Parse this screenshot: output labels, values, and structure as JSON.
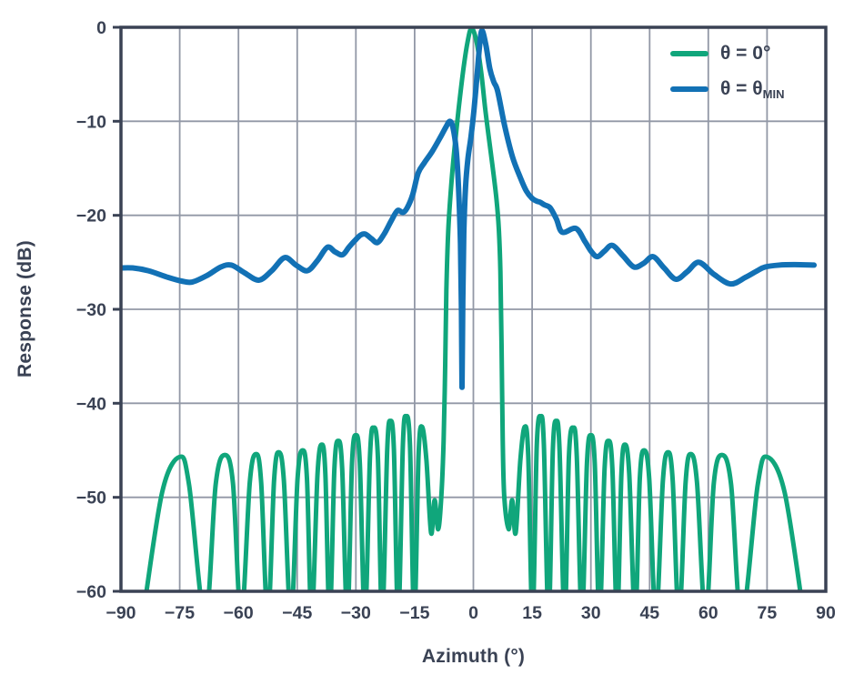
{
  "chart_data": {
    "type": "line",
    "title": "",
    "xlabel": "Azimuth (°)",
    "ylabel": "Response (dB)",
    "xlim": [
      -90,
      90
    ],
    "ylim": [
      -60,
      0
    ],
    "grid": true,
    "legend_position": "top-right",
    "xticks": {
      "values": [
        -90,
        -75,
        -60,
        -45,
        -30,
        -15,
        0,
        15,
        30,
        45,
        60,
        75,
        90
      ],
      "labels": [
        "−90",
        "−75",
        "−60",
        "−45",
        "−30",
        "−15",
        "0",
        "15",
        "30",
        "45",
        "60",
        "75",
        "90"
      ]
    },
    "yticks": {
      "values": [
        0,
        -10,
        -20,
        -30,
        -40,
        -50,
        -60
      ],
      "labels": [
        "0",
        "−10",
        "−20",
        "−30",
        "−40",
        "−50",
        "−60"
      ]
    },
    "colors": {
      "series_green": "#10a67b",
      "series_blue": "#1271b5",
      "grid": "#9298a6",
      "spine": "#3a4254",
      "text": "#3a4254"
    },
    "series": [
      {
        "name": "θ = 0°",
        "color": "#10a67b",
        "points": [
          [
            -84.5,
            -63
          ],
          [
            -79.5,
            -49.5
          ],
          [
            -75,
            -45.7
          ],
          [
            -72.6,
            -48.7
          ],
          [
            -68.5,
            -63
          ],
          [
            -65.8,
            -48.6
          ],
          [
            -63.5,
            -45.5
          ],
          [
            -61.4,
            -48.5
          ],
          [
            -59.3,
            -63
          ],
          [
            -57.1,
            -48.4
          ],
          [
            -55.5,
            -45.4
          ],
          [
            -54.2,
            -48.4
          ],
          [
            -52.5,
            -63
          ],
          [
            -50.9,
            -48.2
          ],
          [
            -49.7,
            -45.2
          ],
          [
            -48.4,
            -48.2
          ],
          [
            -46.6,
            -63
          ],
          [
            -44.9,
            -48.0
          ],
          [
            -43.6,
            -45.0
          ],
          [
            -42.5,
            -48.0
          ],
          [
            -41.3,
            -63
          ],
          [
            -39.8,
            -47.5
          ],
          [
            -38.7,
            -44.4
          ],
          [
            -37.8,
            -47.5
          ],
          [
            -36.7,
            -63
          ],
          [
            -35.5,
            -47.0
          ],
          [
            -34.5,
            -44.0
          ],
          [
            -33.5,
            -47.0
          ],
          [
            -32.2,
            -63
          ],
          [
            -31.0,
            -46.4
          ],
          [
            -30.0,
            -43.4
          ],
          [
            -29.0,
            -46.4
          ],
          [
            -27.7,
            -63
          ],
          [
            -26.4,
            -45.6
          ],
          [
            -25.5,
            -42.6
          ],
          [
            -24.4,
            -45.6
          ],
          [
            -23.3,
            -63
          ],
          [
            -22.0,
            -44.9
          ],
          [
            -21.2,
            -41.9
          ],
          [
            -20.3,
            -44.9
          ],
          [
            -19.2,
            -63
          ],
          [
            -18.0,
            -44.4
          ],
          [
            -17.2,
            -41.4
          ],
          [
            -16.2,
            -44.4
          ],
          [
            -15.1,
            -63
          ],
          [
            -14.0,
            -45.5
          ],
          [
            -13.1,
            -42.5
          ],
          [
            -12.0,
            -46.0
          ],
          [
            -10.8,
            -53.8
          ],
          [
            -9.9,
            -50.3
          ],
          [
            -9.0,
            -53.4
          ],
          [
            -8.2,
            -50.0
          ],
          [
            -7.6,
            -44.0
          ],
          [
            -7.2,
            -36.0
          ],
          [
            -6.9,
            -28.0
          ],
          [
            -6.4,
            -21.5
          ],
          [
            -5.6,
            -16.5
          ],
          [
            -4.8,
            -12.8
          ],
          [
            -3.8,
            -8.8
          ],
          [
            -2.6,
            -4.6
          ],
          [
            -1.5,
            -1.6
          ],
          [
            -0.5,
            -0.1
          ],
          [
            0.8,
            -1.5
          ],
          [
            2.0,
            -4.8
          ],
          [
            3.0,
            -8.6
          ],
          [
            3.9,
            -11.6
          ],
          [
            4.9,
            -14.8
          ],
          [
            5.9,
            -18.3
          ],
          [
            6.5,
            -21.5
          ],
          [
            6.9,
            -26.0
          ],
          [
            7.2,
            -34.0
          ],
          [
            7.5,
            -44.0
          ],
          [
            7.9,
            -50.0
          ],
          [
            9.0,
            -53.4
          ],
          [
            9.9,
            -50.3
          ],
          [
            10.8,
            -53.8
          ],
          [
            12.0,
            -46.0
          ],
          [
            13.1,
            -42.5
          ],
          [
            14.0,
            -45.5
          ],
          [
            15.1,
            -63
          ],
          [
            16.2,
            -44.4
          ],
          [
            17.2,
            -41.4
          ],
          [
            18.0,
            -44.4
          ],
          [
            19.2,
            -63
          ],
          [
            20.3,
            -44.9
          ],
          [
            21.2,
            -41.9
          ],
          [
            22.0,
            -44.9
          ],
          [
            23.3,
            -63
          ],
          [
            24.4,
            -45.6
          ],
          [
            25.5,
            -42.6
          ],
          [
            26.4,
            -45.6
          ],
          [
            27.7,
            -63
          ],
          [
            29.0,
            -46.4
          ],
          [
            30.0,
            -43.4
          ],
          [
            31.0,
            -46.4
          ],
          [
            32.2,
            -63
          ],
          [
            33.5,
            -47.0
          ],
          [
            34.5,
            -44.0
          ],
          [
            35.5,
            -47.0
          ],
          [
            36.7,
            -63
          ],
          [
            37.8,
            -47.5
          ],
          [
            38.7,
            -44.4
          ],
          [
            39.8,
            -47.5
          ],
          [
            41.3,
            -63
          ],
          [
            42.5,
            -48.0
          ],
          [
            43.6,
            -45.0
          ],
          [
            44.9,
            -48.0
          ],
          [
            46.6,
            -63
          ],
          [
            48.4,
            -48.2
          ],
          [
            49.7,
            -45.2
          ],
          [
            50.9,
            -48.2
          ],
          [
            52.5,
            -63
          ],
          [
            54.2,
            -48.4
          ],
          [
            55.5,
            -45.4
          ],
          [
            57.1,
            -48.4
          ],
          [
            59.3,
            -63
          ],
          [
            61.4,
            -48.5
          ],
          [
            63.5,
            -45.5
          ],
          [
            65.8,
            -48.6
          ],
          [
            68.5,
            -63
          ],
          [
            72.6,
            -48.7
          ],
          [
            75.0,
            -45.7
          ],
          [
            79.5,
            -49.5
          ],
          [
            84.5,
            -63
          ]
        ]
      },
      {
        "name": "θ = θMIN",
        "color": "#1271b5",
        "points": [
          [
            -90,
            -25.6
          ],
          [
            -87,
            -25.6
          ],
          [
            -83,
            -25.9
          ],
          [
            -78,
            -26.6
          ],
          [
            -74.5,
            -27.0
          ],
          [
            -71.8,
            -27.1
          ],
          [
            -68,
            -26.4
          ],
          [
            -64.5,
            -25.5
          ],
          [
            -61.8,
            -25.3
          ],
          [
            -58.5,
            -26.1
          ],
          [
            -54.8,
            -26.9
          ],
          [
            -51.5,
            -25.9
          ],
          [
            -48.2,
            -24.5
          ],
          [
            -45.3,
            -25.3
          ],
          [
            -42.4,
            -25.9
          ],
          [
            -39.8,
            -24.8
          ],
          [
            -37.3,
            -23.4
          ],
          [
            -35.3,
            -23.9
          ],
          [
            -33.4,
            -24.2
          ],
          [
            -31.8,
            -23.4
          ],
          [
            -30.3,
            -22.7
          ],
          [
            -28.8,
            -22.1
          ],
          [
            -27.6,
            -22.0
          ],
          [
            -26.0,
            -22.5
          ],
          [
            -24.5,
            -22.9
          ],
          [
            -22.8,
            -22.0
          ],
          [
            -21.0,
            -20.6
          ],
          [
            -19.4,
            -19.5
          ],
          [
            -18.0,
            -19.7
          ],
          [
            -16.9,
            -19.2
          ],
          [
            -15.5,
            -17.8
          ],
          [
            -14.1,
            -15.5
          ],
          [
            -12.5,
            -14.4
          ],
          [
            -10.5,
            -13.2
          ],
          [
            -8.3,
            -11.6
          ],
          [
            -7.0,
            -10.6
          ],
          [
            -6.0,
            -10.0
          ],
          [
            -5.2,
            -10.7
          ],
          [
            -4.4,
            -13.0
          ],
          [
            -3.8,
            -17.0
          ],
          [
            -3.3,
            -23.0
          ],
          [
            -3.05,
            -30.0
          ],
          [
            -2.9,
            -38.3
          ],
          [
            -2.7,
            -29.0
          ],
          [
            -2.45,
            -22.0
          ],
          [
            -2.0,
            -17.0
          ],
          [
            -1.4,
            -14.0
          ],
          [
            -0.6,
            -11.6
          ],
          [
            0.2,
            -8.6
          ],
          [
            1.0,
            -4.8
          ],
          [
            1.6,
            -1.9
          ],
          [
            2.2,
            -0.35
          ],
          [
            3.2,
            -1.9
          ],
          [
            4.2,
            -4.4
          ],
          [
            5.2,
            -5.8
          ],
          [
            6.2,
            -6.8
          ],
          [
            8.0,
            -10.5
          ],
          [
            10.0,
            -13.8
          ],
          [
            12.0,
            -16.0
          ],
          [
            13.5,
            -17.4
          ],
          [
            15.0,
            -18.2
          ],
          [
            16.2,
            -18.5
          ],
          [
            17.0,
            -18.6
          ],
          [
            18.2,
            -18.9
          ],
          [
            19.6,
            -19.2
          ],
          [
            21.2,
            -20.4
          ],
          [
            22.7,
            -21.8
          ],
          [
            26.2,
            -21.4
          ],
          [
            28.5,
            -22.8
          ],
          [
            30.2,
            -23.9
          ],
          [
            31.7,
            -24.4
          ],
          [
            33.5,
            -23.8
          ],
          [
            35.5,
            -23.2
          ],
          [
            38.2,
            -24.3
          ],
          [
            41.0,
            -25.5
          ],
          [
            43.5,
            -25.1
          ],
          [
            45.9,
            -24.4
          ],
          [
            48.7,
            -25.6
          ],
          [
            51.7,
            -26.8
          ],
          [
            54.6,
            -26.0
          ],
          [
            57.6,
            -25.0
          ],
          [
            61.5,
            -26.3
          ],
          [
            65.7,
            -27.3
          ],
          [
            69.5,
            -26.6
          ],
          [
            72.5,
            -25.9
          ],
          [
            74.5,
            -25.5
          ],
          [
            78.0,
            -25.3
          ],
          [
            82.0,
            -25.25
          ],
          [
            87.0,
            -25.3
          ]
        ]
      }
    ],
    "legend": [
      {
        "label": "θ = 0°",
        "subscript": ""
      },
      {
        "label": "θ = θ",
        "subscript": "MIN"
      }
    ]
  }
}
